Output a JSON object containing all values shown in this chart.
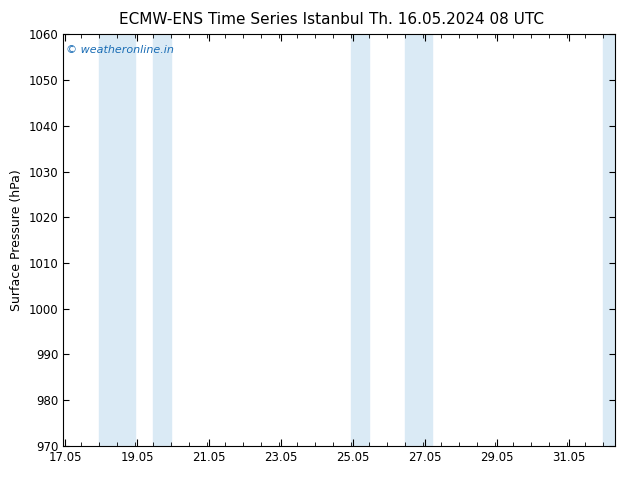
{
  "title_left": "ECMW-ENS Time Series Istanbul",
  "title_right": "Th. 16.05.2024 08 UTC",
  "ylabel": "Surface Pressure (hPa)",
  "ylim": [
    970,
    1060
  ],
  "yticks": [
    970,
    980,
    990,
    1000,
    1010,
    1020,
    1030,
    1040,
    1050,
    1060
  ],
  "xlim_start": 17.0,
  "xlim_end": 32.33,
  "xtick_positions": [
    17.05,
    19.05,
    21.05,
    23.05,
    25.05,
    27.05,
    29.05,
    31.05
  ],
  "xtick_labels": [
    "17.05",
    "19.05",
    "21.05",
    "23.05",
    "25.05",
    "27.05",
    "29.05",
    "31.05"
  ],
  "shaded_bands": [
    {
      "x_start": 18.0,
      "x_end": 19.0
    },
    {
      "x_start": 19.5,
      "x_end": 20.0
    },
    {
      "x_start": 25.0,
      "x_end": 25.5
    },
    {
      "x_start": 26.5,
      "x_end": 27.25
    },
    {
      "x_start": 32.0,
      "x_end": 32.33
    }
  ],
  "band_color": "#daeaf5",
  "watermark_text": "© weatheronline.in",
  "watermark_color": "#1a6db5",
  "background_color": "#ffffff",
  "title_fontsize": 11,
  "ylabel_fontsize": 9,
  "tick_fontsize": 8.5,
  "tick_color": "#000000"
}
